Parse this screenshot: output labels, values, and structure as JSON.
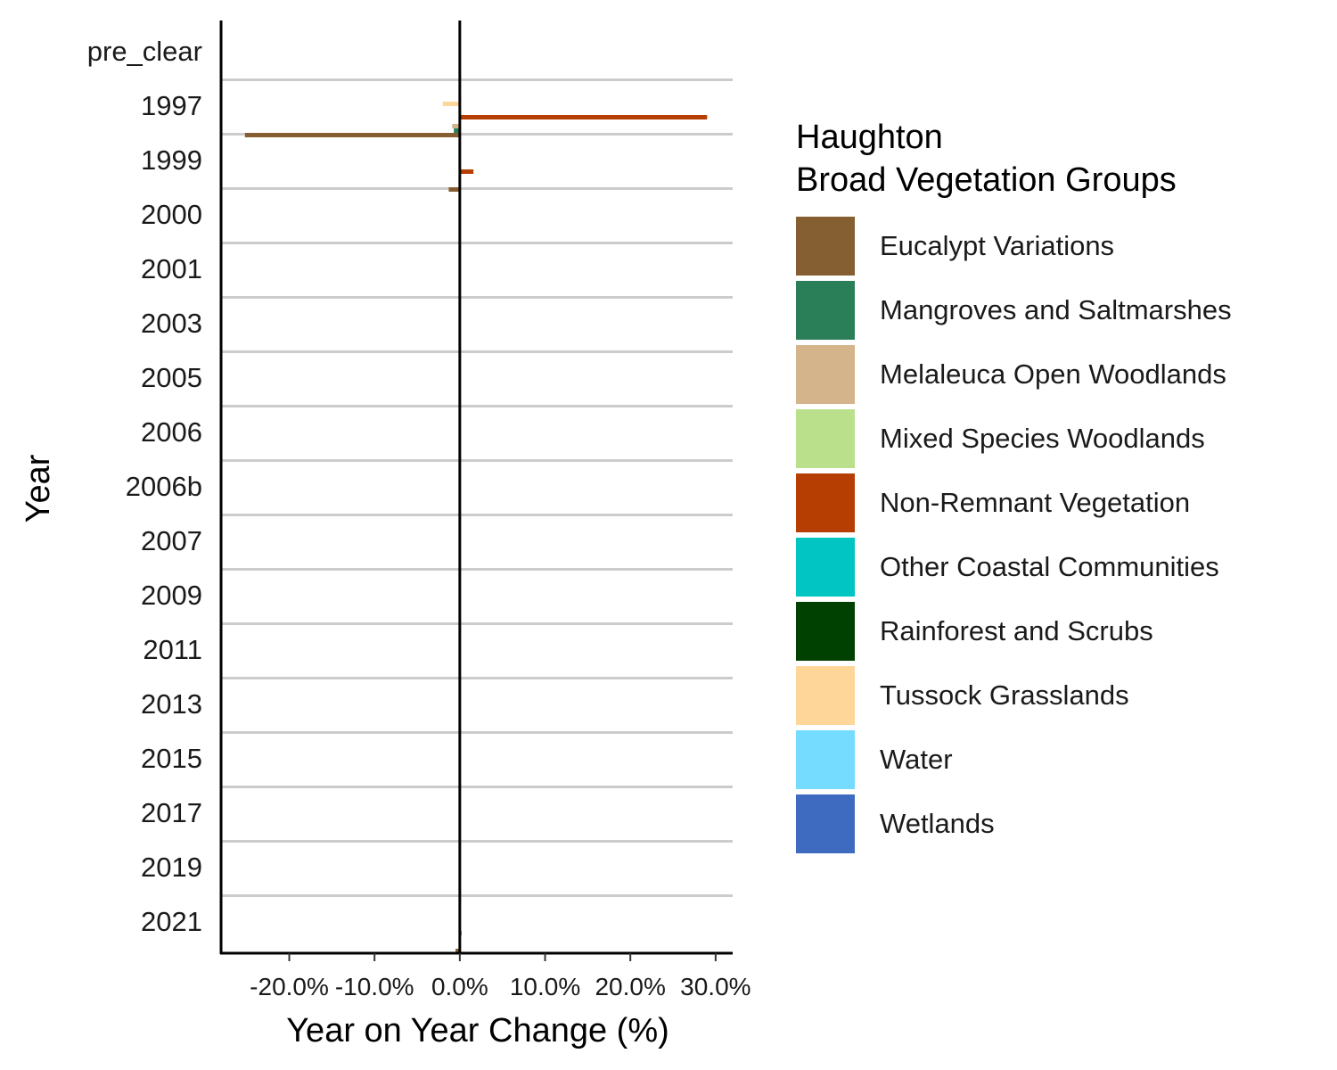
{
  "chart_data": {
    "type": "bar",
    "orientation": "horizontal",
    "xlabel": "Year on Year Change (%)",
    "ylabel": "Year",
    "xlim": [
      -28,
      32
    ],
    "x_ticks": [
      -20,
      -10,
      0,
      10,
      20,
      30
    ],
    "x_tick_labels": [
      "-20.0%",
      "-10.0%",
      "0.0%",
      "10.0%",
      "20.0%",
      "30.0%"
    ],
    "categories": [
      "pre_clear",
      "1997",
      "1999",
      "2000",
      "2001",
      "2003",
      "2005",
      "2006",
      "2006b",
      "2007",
      "2009",
      "2011",
      "2013",
      "2015",
      "2017",
      "2019",
      "2021"
    ],
    "legend": {
      "title_lines": [
        "Haughton",
        "Broad Vegetation Groups"
      ],
      "position": "right"
    },
    "grid": "horizontal separators between categories",
    "series": [
      {
        "name": "Eucalypt Variations",
        "color": "#855F31",
        "values": [
          0,
          -25.2,
          -1.3,
          0,
          0,
          0,
          0,
          0,
          0,
          0,
          0,
          0,
          0,
          0,
          0,
          0,
          -0.5
        ]
      },
      {
        "name": "Mangroves and Saltmarshes",
        "color": "#2A7F58",
        "values": [
          0,
          -0.7,
          0,
          0,
          0,
          0,
          0,
          0,
          0,
          0,
          0,
          0,
          0,
          0,
          0,
          0,
          0
        ]
      },
      {
        "name": "Melaleuca Open Woodlands",
        "color": "#D4B48A",
        "values": [
          0,
          -0.9,
          0,
          0,
          0,
          0,
          0,
          0,
          0,
          0,
          0,
          0,
          0,
          0,
          0,
          0,
          0
        ]
      },
      {
        "name": "Mixed Species Woodlands",
        "color": "#BBE08C",
        "values": [
          0,
          0,
          0,
          0,
          0,
          0,
          0,
          0,
          0,
          0,
          0,
          0,
          0,
          0,
          0,
          0,
          0
        ]
      },
      {
        "name": "Non-Remnant Vegetation",
        "color": "#B63E03",
        "values": [
          0,
          29.0,
          1.6,
          0,
          0,
          0,
          0,
          0,
          0,
          0,
          0,
          0,
          0,
          0,
          0,
          0,
          0.2
        ]
      },
      {
        "name": "Other Coastal Communities",
        "color": "#00C5C3",
        "values": [
          0,
          0,
          0,
          0,
          0,
          0,
          0,
          0,
          0,
          0,
          0,
          0,
          0,
          0,
          0,
          0,
          0
        ]
      },
      {
        "name": "Rainforest and Scrubs",
        "color": "#004000",
        "values": [
          0,
          0,
          0,
          0,
          0,
          0,
          0,
          0,
          0,
          0,
          0,
          0,
          0,
          0,
          0,
          0,
          0
        ]
      },
      {
        "name": "Tussock Grasslands",
        "color": "#FED699",
        "values": [
          0,
          -2.0,
          0,
          0,
          0,
          0,
          0,
          0,
          0,
          0,
          0,
          0,
          0,
          0,
          0,
          0,
          0
        ]
      },
      {
        "name": "Water",
        "color": "#76DCFF",
        "values": [
          0,
          0,
          0,
          0,
          0,
          0,
          0,
          0,
          0,
          0,
          0,
          0,
          0,
          0,
          0,
          0,
          0
        ]
      },
      {
        "name": "Wetlands",
        "color": "#3E6BBF",
        "values": [
          0,
          0,
          0,
          0,
          0,
          0,
          0,
          0,
          0,
          0,
          0,
          0,
          0,
          0,
          0,
          0,
          0
        ]
      }
    ]
  }
}
